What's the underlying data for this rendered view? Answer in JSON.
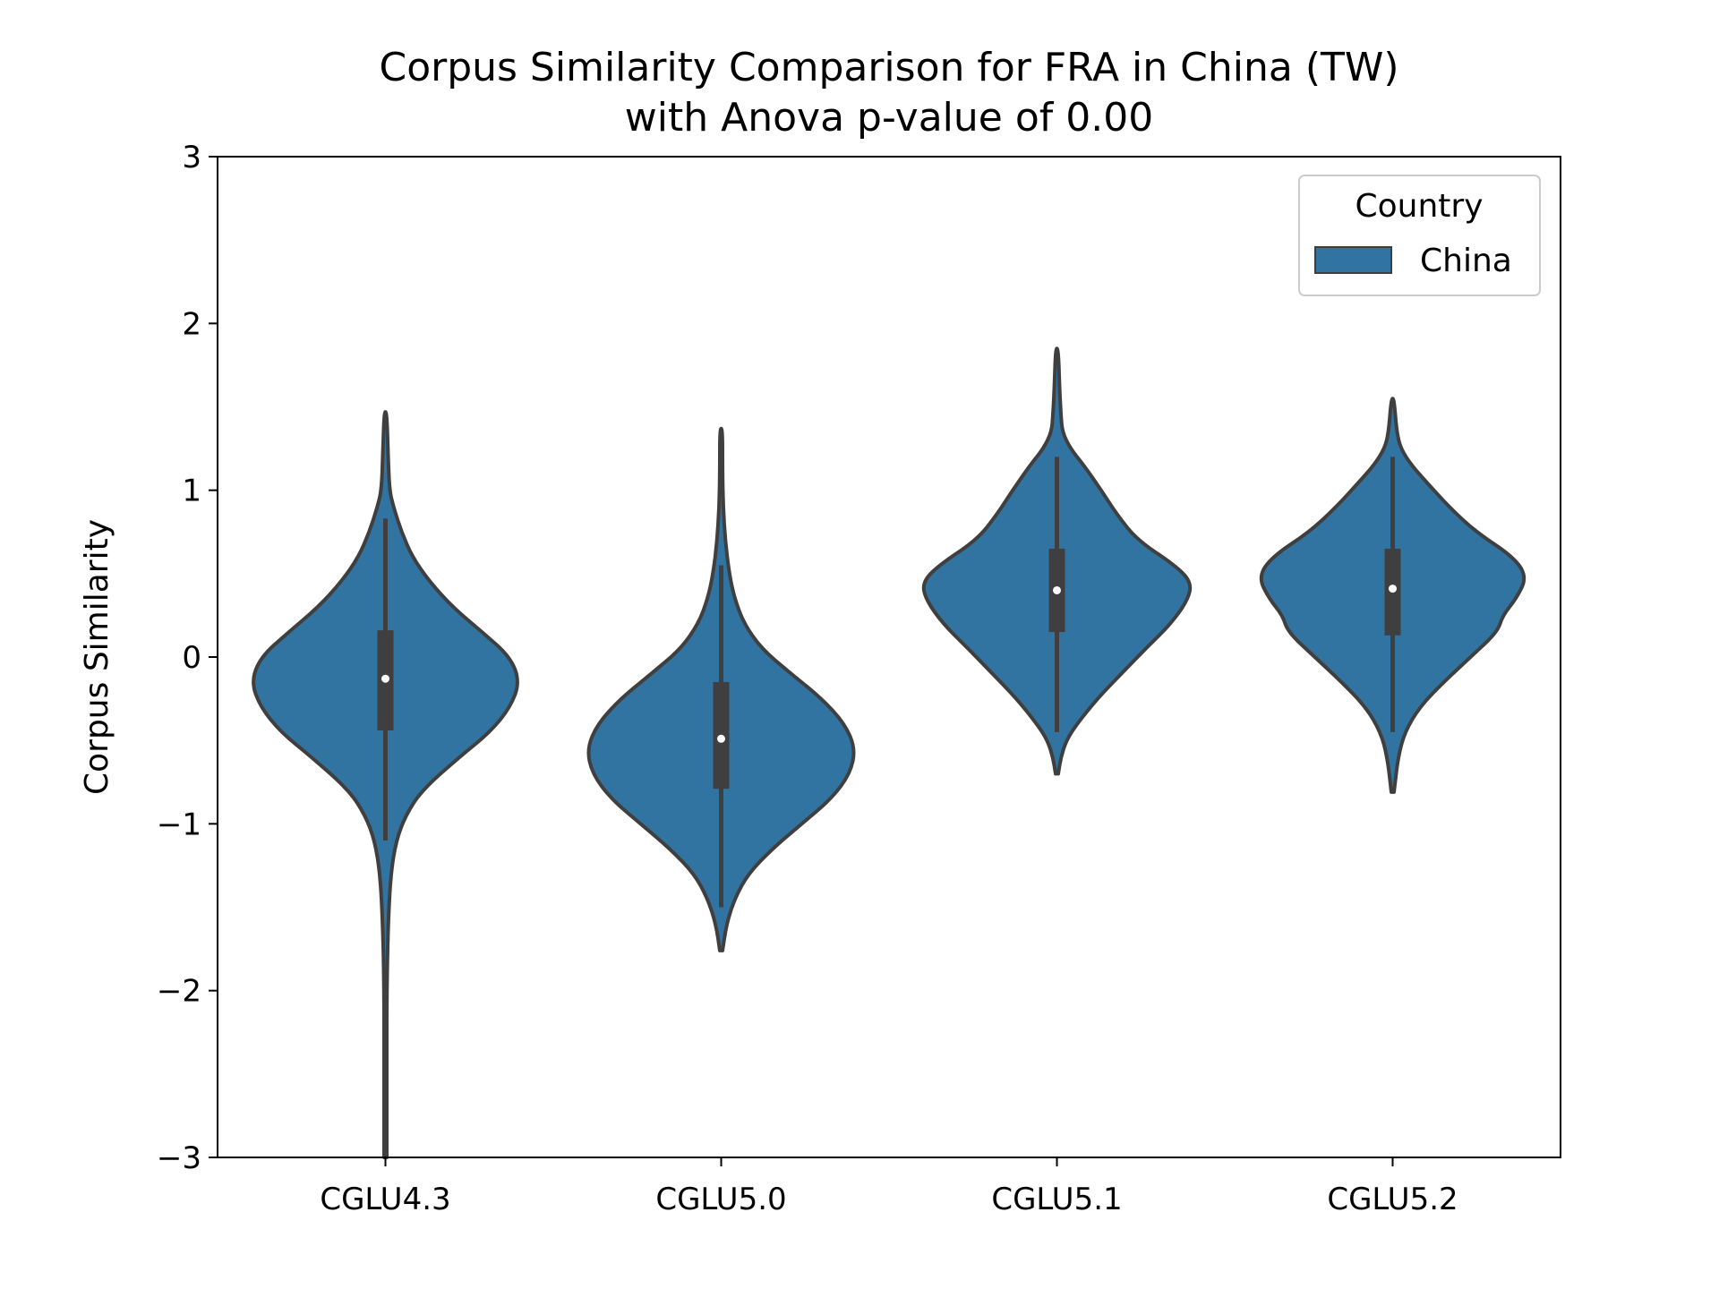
{
  "chart_data": {
    "type": "violin",
    "title_line1": "Corpus Similarity Comparison for FRA in China (TW)",
    "title_line2": "with Anova p-value of 0.00",
    "xlabel": "",
    "ylabel": "Corpus Similarity",
    "ylim": [
      -3,
      3
    ],
    "yticks": [
      -3,
      -2,
      -1,
      0,
      1,
      2,
      3
    ],
    "ytick_labels": [
      "−3",
      "−2",
      "−1",
      "0",
      "1",
      "2",
      "3"
    ],
    "categories": [
      "CGLU4.3",
      "CGLU5.0",
      "CGLU5.1",
      "CGLU5.2"
    ],
    "legend": {
      "title": "Country",
      "entries": [
        "China"
      ],
      "placement": "upper right"
    },
    "colors": {
      "fill": "#3274a1",
      "edge": "#3f3f3f",
      "box": "#3f3f3f",
      "median": "#ffffff"
    },
    "series": [
      {
        "name": "China",
        "violins": [
          {
            "category": "CGLU4.3",
            "median": -0.13,
            "q1": -0.44,
            "q3": 0.16,
            "whisker_low": -1.1,
            "whisker_high": 0.83,
            "profile": [
              [
                -3.0,
                0.01
              ],
              [
                -2.5,
                0.01
              ],
              [
                -2.0,
                0.01
              ],
              [
                -1.6,
                0.02
              ],
              [
                -1.3,
                0.04
              ],
              [
                -1.1,
                0.08
              ],
              [
                -0.95,
                0.15
              ],
              [
                -0.8,
                0.27
              ],
              [
                -0.6,
                0.55
              ],
              [
                -0.45,
                0.78
              ],
              [
                -0.3,
                0.93
              ],
              [
                -0.15,
                1.0
              ],
              [
                0.0,
                0.93
              ],
              [
                0.15,
                0.72
              ],
              [
                0.3,
                0.5
              ],
              [
                0.45,
                0.33
              ],
              [
                0.6,
                0.2
              ],
              [
                0.75,
                0.12
              ],
              [
                0.9,
                0.06
              ],
              [
                1.0,
                0.03
              ],
              [
                1.2,
                0.02
              ],
              [
                1.47,
                0.01
              ]
            ]
          },
          {
            "category": "CGLU5.0",
            "median": -0.49,
            "q1": -0.79,
            "q3": -0.15,
            "whisker_low": -1.5,
            "whisker_high": 0.55,
            "profile": [
              [
                -1.76,
                0.01
              ],
              [
                -1.6,
                0.04
              ],
              [
                -1.45,
                0.1
              ],
              [
                -1.3,
                0.2
              ],
              [
                -1.15,
                0.38
              ],
              [
                -1.0,
                0.6
              ],
              [
                -0.85,
                0.82
              ],
              [
                -0.7,
                0.96
              ],
              [
                -0.55,
                1.0
              ],
              [
                -0.4,
                0.92
              ],
              [
                -0.25,
                0.75
              ],
              [
                -0.1,
                0.52
              ],
              [
                0.05,
                0.3
              ],
              [
                0.2,
                0.17
              ],
              [
                0.35,
                0.1
              ],
              [
                0.5,
                0.06
              ],
              [
                0.7,
                0.03
              ],
              [
                0.9,
                0.015
              ],
              [
                1.1,
                0.01
              ],
              [
                1.37,
                0.01
              ]
            ]
          },
          {
            "category": "CGLU5.1",
            "median": 0.4,
            "q1": 0.15,
            "q3": 0.65,
            "whisker_low": -0.45,
            "whisker_high": 1.2,
            "profile": [
              [
                -0.7,
                0.01
              ],
              [
                -0.6,
                0.03
              ],
              [
                -0.5,
                0.07
              ],
              [
                -0.4,
                0.15
              ],
              [
                -0.25,
                0.3
              ],
              [
                -0.1,
                0.48
              ],
              [
                0.05,
                0.66
              ],
              [
                0.2,
                0.85
              ],
              [
                0.35,
                0.98
              ],
              [
                0.45,
                1.0
              ],
              [
                0.55,
                0.88
              ],
              [
                0.7,
                0.6
              ],
              [
                0.85,
                0.45
              ],
              [
                1.0,
                0.33
              ],
              [
                1.15,
                0.2
              ],
              [
                1.25,
                0.1
              ],
              [
                1.35,
                0.04
              ],
              [
                1.45,
                0.03
              ],
              [
                1.6,
                0.02
              ],
              [
                1.85,
                0.01
              ]
            ]
          },
          {
            "category": "CGLU5.2",
            "median": 0.41,
            "q1": 0.13,
            "q3": 0.65,
            "whisker_low": -0.45,
            "whisker_high": 1.2,
            "profile": [
              [
                -0.81,
                0.01
              ],
              [
                -0.6,
                0.04
              ],
              [
                -0.45,
                0.09
              ],
              [
                -0.3,
                0.2
              ],
              [
                -0.15,
                0.38
              ],
              [
                0.0,
                0.58
              ],
              [
                0.15,
                0.78
              ],
              [
                0.25,
                0.82
              ],
              [
                0.35,
                0.92
              ],
              [
                0.48,
                1.0
              ],
              [
                0.6,
                0.9
              ],
              [
                0.75,
                0.62
              ],
              [
                0.9,
                0.42
              ],
              [
                1.05,
                0.25
              ],
              [
                1.15,
                0.14
              ],
              [
                1.25,
                0.06
              ],
              [
                1.35,
                0.03
              ],
              [
                1.55,
                0.01
              ]
            ]
          }
        ]
      }
    ]
  }
}
